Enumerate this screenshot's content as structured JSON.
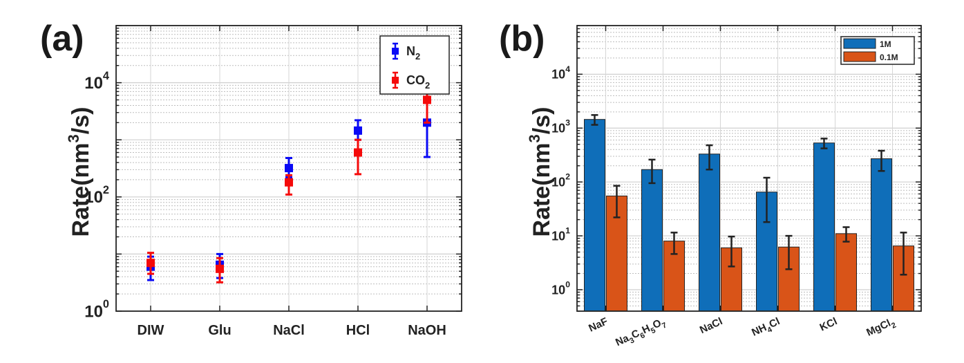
{
  "panels": {
    "a": "(a)",
    "b": "(b)"
  },
  "chart_data": [
    {
      "type": "scatter",
      "panel": "(a)",
      "ylabel": "Rate(nm3/s)",
      "ylabel_parts": [
        "Rate(nm",
        "3",
        "/s)"
      ],
      "yscale": "log",
      "ylim": [
        1,
        100000
      ],
      "yticks": [
        {
          "base": "10",
          "exp": "0"
        },
        {
          "base": "10",
          "exp": "2"
        },
        {
          "base": "10",
          "exp": "4"
        }
      ],
      "categories": [
        "DIW",
        "Glu",
        "NaCl",
        "HCl",
        "NaOH"
      ],
      "grid": true,
      "legend": "top-right",
      "series": [
        {
          "name": "N2",
          "name_main": "N",
          "name_sub": "2",
          "color": "#0a0af5",
          "values": [
            6,
            6.5,
            320,
            1450,
            2000
          ],
          "err_low": [
            3.5,
            3.8,
            220,
            1000,
            500
          ],
          "err_high": [
            9,
            10,
            480,
            2200,
            7000
          ]
        },
        {
          "name": "CO2",
          "name_main": "CO",
          "name_sub": "2",
          "color": "#f50a0a",
          "values": [
            7,
            5.5,
            180,
            600,
            5000
          ],
          "err_low": [
            4.5,
            3.2,
            110,
            250,
            2000
          ],
          "err_high": [
            10.5,
            8.5,
            240,
            1000,
            8500
          ]
        }
      ]
    },
    {
      "type": "bar",
      "panel": "(b)",
      "ylabel": "Rate(nm3/s)",
      "ylabel_parts": [
        "Rate(nm",
        "3",
        "/s)"
      ],
      "yscale": "log",
      "ylim": [
        0.4,
        80000
      ],
      "yticks": [
        {
          "base": "10",
          "exp": "0"
        },
        {
          "base": "10",
          "exp": "1"
        },
        {
          "base": "10",
          "exp": "2"
        },
        {
          "base": "10",
          "exp": "3"
        },
        {
          "base": "10",
          "exp": "4"
        }
      ],
      "categories": [
        "NaF",
        "Na3C6H5O7",
        "NaCl",
        "NH4Cl",
        "KCl",
        "MgCl2"
      ],
      "category_parts": [
        [
          [
            "NaF",
            ""
          ]
        ],
        [
          [
            "Na",
            "3"
          ],
          [
            "C",
            "6"
          ],
          [
            "H",
            "5"
          ],
          [
            "O",
            "7"
          ]
        ],
        [
          [
            "NaCl",
            ""
          ]
        ],
        [
          [
            "NH",
            "4"
          ],
          [
            "Cl",
            ""
          ]
        ],
        [
          [
            "KCl",
            ""
          ]
        ],
        [
          [
            "MgCl",
            "2"
          ]
        ]
      ],
      "grid": true,
      "legend": "top-right",
      "series": [
        {
          "name": "1M",
          "color": "#0f6eb9",
          "values": [
            1450,
            170,
            330,
            65,
            530,
            270
          ],
          "err_low": [
            1150,
            95,
            170,
            18,
            420,
            160
          ],
          "err_high": [
            1750,
            260,
            480,
            120,
            640,
            380
          ]
        },
        {
          "name": "0.1M",
          "color": "#d95418",
          "values": [
            55,
            8,
            6,
            6.2,
            11,
            6.5
          ],
          "err_low": [
            22,
            4.6,
            2.7,
            2.4,
            7.8,
            1.9
          ],
          "err_high": [
            85,
            11.5,
            9.7,
            10,
            14.5,
            11.5
          ]
        }
      ]
    }
  ]
}
